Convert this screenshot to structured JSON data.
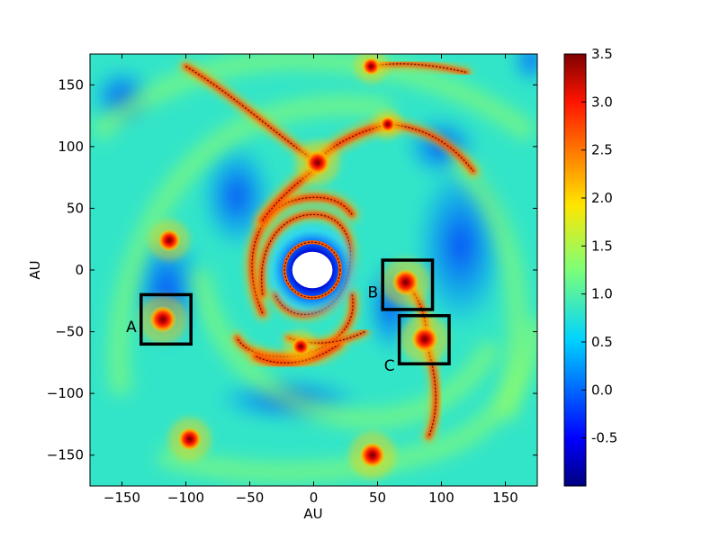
{
  "chart_data": {
    "type": "heatmap",
    "title": "",
    "xlabel": "AU",
    "ylabel": "AU",
    "xlim": [
      -175,
      175
    ],
    "ylim": [
      -175,
      175
    ],
    "x_ticks": [
      -150,
      -100,
      -50,
      0,
      50,
      100,
      150
    ],
    "y_ticks": [
      -150,
      -100,
      -50,
      0,
      50,
      100,
      150
    ],
    "x_tick_labels": [
      "−150",
      "−100",
      "−50",
      "0",
      "50",
      "100",
      "150"
    ],
    "y_tick_labels": [
      "−150",
      "−100",
      "−50",
      "0",
      "50",
      "100",
      "150"
    ],
    "colorbar": {
      "range": [
        -1.0,
        3.5
      ],
      "ticks": [
        -0.5,
        0.0,
        0.5,
        1.0,
        1.5,
        2.0,
        2.5,
        3.0,
        3.5
      ],
      "tick_labels": [
        "-0.5",
        "0.0",
        "0.5",
        "1.0",
        "1.5",
        "2.0",
        "2.5",
        "3.0",
        "3.5"
      ],
      "colormap": "jet"
    },
    "boxes": [
      {
        "label": "A",
        "x0": -135,
        "x1": -96,
        "y0": -60,
        "y1": -20
      },
      {
        "label": "B",
        "x0": 54,
        "x1": 93,
        "y0": -32,
        "y1": 8
      },
      {
        "label": "C",
        "x0": 67,
        "x1": 106,
        "y0": -76,
        "y1": -37
      }
    ],
    "clumps": [
      {
        "x": -118,
        "y": -40,
        "value": 3.4
      },
      {
        "x": 72,
        "y": -10,
        "value": 3.4
      },
      {
        "x": 87,
        "y": -56,
        "value": 3.4
      },
      {
        "x": -113,
        "y": 24,
        "value": 3.0
      },
      {
        "x": 3,
        "y": 87,
        "value": 3.2
      },
      {
        "x": 46,
        "y": -150,
        "value": 3.3
      },
      {
        "x": -97,
        "y": -137,
        "value": 3.1
      },
      {
        "x": 45,
        "y": 165,
        "value": 2.6
      },
      {
        "x": 58,
        "y": 118,
        "value": 2.4
      },
      {
        "x": -10,
        "y": -62,
        "value": 2.6
      }
    ],
    "central_hole": {
      "x": -1,
      "y": 0,
      "radius": 15
    },
    "grid": false
  }
}
